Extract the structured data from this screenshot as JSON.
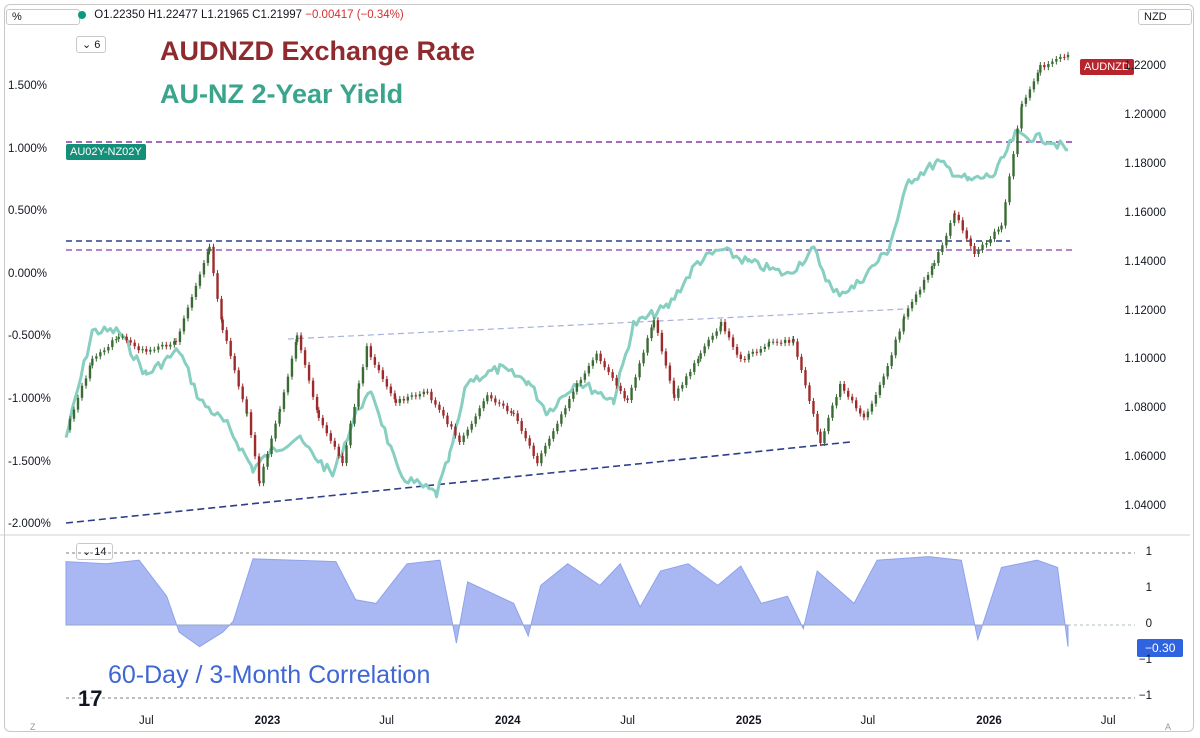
{
  "header": {
    "left_symbol": "%",
    "currency": "NZD",
    "ohlc": {
      "o": "O1.22350",
      "h": "H1.22477",
      "l": "L1.21965",
      "c": "C1.21997",
      "chg": "−0.00417 (−0.34%)"
    },
    "indicator_count_main": "6",
    "indicator_count_sub": "14"
  },
  "titles": {
    "main": "AUDNZD Exchange Rate",
    "secondary": "AU-NZ 2-Year Yield",
    "correlation": "60-Day / 3-Month Correlation"
  },
  "badges": {
    "audnzd": "AUDNZD",
    "spread": "AU02Y-NZ02Y",
    "corr_value": "−0.30"
  },
  "colors": {
    "audnzd_title": "#8f2a2e",
    "yield_title": "#3aa58c",
    "yield_line": "#87cfc0",
    "candle_up": "#3a6b34",
    "candle_down": "#9e2b2b",
    "purple_dash": "#8a3aa8",
    "blue_dash": "#2d3f8a",
    "corr_fill": "#a9b8f2",
    "corr_label": "#3f67d3",
    "badge_red": "#b8242b",
    "badge_teal": "#138f7a",
    "badge_blue": "#2f63e0"
  },
  "chart_data": [
    {
      "type": "line",
      "name": "AUDNZD",
      "axis_right_ticks": [
        "1.22000",
        "1.20000",
        "1.18000",
        "1.16000",
        "1.14000",
        "1.12000",
        "1.10000",
        "1.08000",
        "1.06000",
        "1.04000"
      ],
      "x_ticks": [
        "Jul",
        "2023",
        "Jul",
        "2024",
        "Jul",
        "2025",
        "Jul",
        "2026",
        "Jul"
      ],
      "ylim": [
        1.032,
        1.226
      ],
      "points": [
        [
          "2022-03-01",
          1.072
        ],
        [
          "2022-04-10",
          1.1
        ],
        [
          "2022-05-20",
          1.11
        ],
        [
          "2022-07-01",
          1.103
        ],
        [
          "2022-08-15",
          1.108
        ],
        [
          "2022-10-05",
          1.146
        ],
        [
          "2022-10-25",
          1.113
        ],
        [
          "2022-12-01",
          1.078
        ],
        [
          "2022-12-20",
          1.05
        ],
        [
          "2023-01-20",
          1.08
        ],
        [
          "2023-02-15",
          1.11
        ],
        [
          "2023-03-20",
          1.077
        ],
        [
          "2023-04-25",
          1.058
        ],
        [
          "2023-05-20",
          1.09
        ],
        [
          "2023-06-01",
          1.105
        ],
        [
          "2023-07-15",
          1.083
        ],
        [
          "2023-09-01",
          1.087
        ],
        [
          "2023-10-20",
          1.067
        ],
        [
          "2023-12-01",
          1.085
        ],
        [
          "2024-01-10",
          1.078
        ],
        [
          "2024-02-15",
          1.058
        ],
        [
          "2024-04-15",
          1.09
        ],
        [
          "2024-05-15",
          1.102
        ],
        [
          "2024-07-01",
          1.083
        ],
        [
          "2024-08-10",
          1.117
        ],
        [
          "2024-09-10",
          1.085
        ],
        [
          "2024-10-20",
          1.103
        ],
        [
          "2024-11-20",
          1.115
        ],
        [
          "2024-12-20",
          1.1
        ],
        [
          "2025-02-01",
          1.107
        ],
        [
          "2025-03-10",
          1.108
        ],
        [
          "2025-04-20",
          1.067
        ],
        [
          "2025-05-20",
          1.09
        ],
        [
          "2025-06-25",
          1.076
        ],
        [
          "2025-07-25",
          1.093
        ],
        [
          "2025-08-25",
          1.118
        ],
        [
          "2025-10-10",
          1.14
        ],
        [
          "2025-11-10",
          1.16
        ],
        [
          "2025-12-10",
          1.143
        ],
        [
          "2026-01-20",
          1.155
        ],
        [
          "2026-02-20",
          1.205
        ],
        [
          "2026-03-20",
          1.22
        ],
        [
          "2026-05-01",
          1.225
        ]
      ]
    },
    {
      "type": "line",
      "name": "AU02Y-NZ02Y",
      "axis_left_ticks": [
        "1.500%",
        "1.000%",
        "0.500%",
        "0.000%",
        "-0.500%",
        "-1.000%",
        "-1.500%",
        "-2.000%"
      ],
      "ylim": [
        -2.05,
        1.9
      ],
      "points": [
        [
          "2022-03-01",
          -1.3
        ],
        [
          "2022-04-10",
          -0.45
        ],
        [
          "2022-05-20",
          -0.45
        ],
        [
          "2022-07-01",
          -0.8
        ],
        [
          "2022-08-20",
          -0.6
        ],
        [
          "2022-09-20",
          -1.0
        ],
        [
          "2022-11-01",
          -1.2
        ],
        [
          "2022-12-10",
          -1.55
        ],
        [
          "2023-01-10",
          -1.4
        ],
        [
          "2023-02-15",
          -1.3
        ],
        [
          "2023-04-10",
          -1.6
        ],
        [
          "2023-05-20",
          -1.05
        ],
        [
          "2023-06-10",
          -0.95
        ],
        [
          "2023-07-20",
          -1.6
        ],
        [
          "2023-09-15",
          -1.75
        ],
        [
          "2023-10-05",
          -1.45
        ],
        [
          "2023-11-01",
          -0.85
        ],
        [
          "2023-12-20",
          -0.75
        ],
        [
          "2024-02-01",
          -0.85
        ],
        [
          "2024-03-01",
          -1.1
        ],
        [
          "2024-04-15",
          -0.85
        ],
        [
          "2024-06-10",
          -1.0
        ],
        [
          "2024-07-10",
          -0.4
        ],
        [
          "2024-09-01",
          -0.25
        ],
        [
          "2024-10-15",
          0.1
        ],
        [
          "2024-11-20",
          0.2
        ],
        [
          "2025-01-01",
          0.1
        ],
        [
          "2025-03-01",
          0.0
        ],
        [
          "2025-04-10",
          0.2
        ],
        [
          "2025-05-10",
          -0.15
        ],
        [
          "2025-06-10",
          -0.1
        ],
        [
          "2025-08-01",
          0.2
        ],
        [
          "2025-09-01",
          0.75
        ],
        [
          "2025-10-15",
          0.9
        ],
        [
          "2025-12-01",
          0.75
        ],
        [
          "2026-01-10",
          0.8
        ],
        [
          "2026-02-10",
          1.12
        ],
        [
          "2026-04-01",
          1.08
        ],
        [
          "2026-05-01",
          1.0
        ]
      ]
    },
    {
      "type": "area",
      "name": "correlation",
      "axis_ticks": [
        "1",
        "1",
        "0",
        "−1",
        "−1"
      ],
      "ylim": [
        -1,
        1
      ],
      "points": [
        [
          "2022-03-01",
          0.88
        ],
        [
          "2022-05-01",
          0.85
        ],
        [
          "2022-06-20",
          0.9
        ],
        [
          "2022-08-01",
          0.4
        ],
        [
          "2022-08-20",
          -0.1
        ],
        [
          "2022-09-20",
          -0.3
        ],
        [
          "2022-10-25",
          -0.1
        ],
        [
          "2022-11-10",
          0.05
        ],
        [
          "2022-12-10",
          0.92
        ],
        [
          "2023-04-15",
          0.88
        ],
        [
          "2023-05-15",
          0.35
        ],
        [
          "2023-06-15",
          0.3
        ],
        [
          "2023-08-01",
          0.85
        ],
        [
          "2023-09-20",
          0.9
        ],
        [
          "2023-10-15",
          -0.25
        ],
        [
          "2023-11-01",
          0.6
        ],
        [
          "2024-01-10",
          0.3
        ],
        [
          "2024-02-01",
          -0.15
        ],
        [
          "2024-02-20",
          0.55
        ],
        [
          "2024-04-01",
          0.85
        ],
        [
          "2024-05-20",
          0.55
        ],
        [
          "2024-06-20",
          0.85
        ],
        [
          "2024-07-20",
          0.25
        ],
        [
          "2024-08-20",
          0.75
        ],
        [
          "2024-10-01",
          0.85
        ],
        [
          "2024-11-15",
          0.55
        ],
        [
          "2024-12-20",
          0.82
        ],
        [
          "2025-01-20",
          0.3
        ],
        [
          "2025-03-01",
          0.4
        ],
        [
          "2025-03-25",
          -0.05
        ],
        [
          "2025-04-15",
          0.75
        ],
        [
          "2025-05-10",
          0.55
        ],
        [
          "2025-06-10",
          0.3
        ],
        [
          "2025-07-15",
          0.9
        ],
        [
          "2025-10-01",
          0.95
        ],
        [
          "2025-11-20",
          0.9
        ],
        [
          "2025-12-15",
          -0.2
        ],
        [
          "2026-01-20",
          0.8
        ],
        [
          "2026-03-15",
          0.9
        ],
        [
          "2026-04-15",
          0.8
        ],
        [
          "2026-05-01",
          -0.3
        ]
      ]
    }
  ]
}
